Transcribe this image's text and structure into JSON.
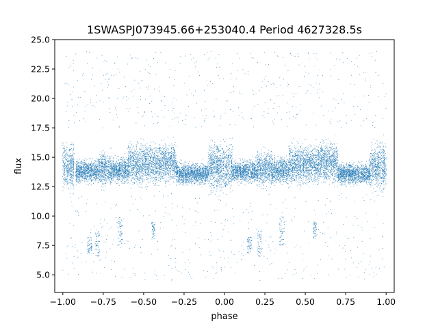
{
  "chart_data": {
    "type": "scatter",
    "title": "1SWASPJ073945.66+253040.4 Period 4627328.5s",
    "xlabel": "phase",
    "ylabel": "flux",
    "xlim": [
      -1.05,
      1.05
    ],
    "ylim": [
      3.5,
      25.0
    ],
    "x_ticks": [
      -1.0,
      -0.75,
      -0.5,
      -0.25,
      0.0,
      0.25,
      0.5,
      0.75,
      1.0
    ],
    "x_tick_labels": [
      "−1.00",
      "−0.75",
      "−0.50",
      "−0.25",
      "0.00",
      "0.25",
      "0.50",
      "0.75",
      "1.00"
    ],
    "y_ticks": [
      5.0,
      7.5,
      10.0,
      12.5,
      15.0,
      17.5,
      20.0,
      22.5,
      25.0
    ],
    "y_tick_labels": [
      "5.0",
      "7.5",
      "10.0",
      "12.5",
      "15.0",
      "17.5",
      "20.0",
      "22.5",
      "25.0"
    ],
    "grid": false,
    "legend": "none",
    "marker_color": "#1f77b4",
    "series": [
      {
        "points_summary": "dense light-curve points, phase-folded and repeated over two cycles",
        "segments": [
          {
            "x": [
              -1.0,
              -0.93
            ],
            "y_center": 14.2,
            "y_spread": 3.2
          },
          {
            "x": [
              -0.92,
              -0.78
            ],
            "y_center": 13.8,
            "y_spread": 1.6
          },
          {
            "x": [
              -0.78,
              -0.7
            ],
            "y_center": 14.0,
            "y_spread": 2.4
          },
          {
            "x": [
              -0.7,
              -0.6
            ],
            "y_center": 13.9,
            "y_spread": 1.8
          },
          {
            "x": [
              -0.6,
              -0.4
            ],
            "y_center": 14.4,
            "y_spread": 2.8
          },
          {
            "x": [
              -0.4,
              -0.3
            ],
            "y_center": 14.6,
            "y_spread": 2.8
          },
          {
            "x": [
              -0.3,
              -0.1
            ],
            "y_center": 13.6,
            "y_spread": 1.5
          },
          {
            "x": [
              -0.1,
              0.05
            ],
            "y_center": 14.2,
            "y_spread": 3.4
          },
          {
            "x": [
              0.05,
              0.2
            ],
            "y_center": 13.8,
            "y_spread": 1.6
          },
          {
            "x": [
              0.2,
              0.3
            ],
            "y_center": 14.0,
            "y_spread": 2.4
          },
          {
            "x": [
              0.3,
              0.4
            ],
            "y_center": 13.9,
            "y_spread": 1.8
          },
          {
            "x": [
              0.4,
              0.6
            ],
            "y_center": 14.4,
            "y_spread": 2.8
          },
          {
            "x": [
              0.6,
              0.7
            ],
            "y_center": 14.6,
            "y_spread": 2.8
          },
          {
            "x": [
              0.7,
              0.9
            ],
            "y_center": 13.6,
            "y_spread": 1.5
          },
          {
            "x": [
              0.9,
              1.0
            ],
            "y_center": 14.2,
            "y_spread": 3.4
          }
        ],
        "low_clusters": [
          {
            "x": [
              -0.85,
              -0.82
            ],
            "y": [
              6.8,
              8.2
            ]
          },
          {
            "x": [
              -0.8,
              -0.77
            ],
            "y": [
              6.5,
              8.8
            ]
          },
          {
            "x": [
              -0.66,
              -0.63
            ],
            "y": [
              7.5,
              10.0
            ]
          },
          {
            "x": [
              -0.45,
              -0.43
            ],
            "y": [
              8.0,
              9.5
            ]
          },
          {
            "x": [
              0.14,
              0.17
            ],
            "y": [
              6.8,
              8.2
            ]
          },
          {
            "x": [
              0.2,
              0.23
            ],
            "y": [
              6.5,
              8.8
            ]
          },
          {
            "x": [
              0.34,
              0.37
            ],
            "y": [
              7.5,
              10.0
            ]
          },
          {
            "x": [
              0.55,
              0.57
            ],
            "y": [
              8.0,
              9.5
            ]
          }
        ]
      }
    ]
  }
}
